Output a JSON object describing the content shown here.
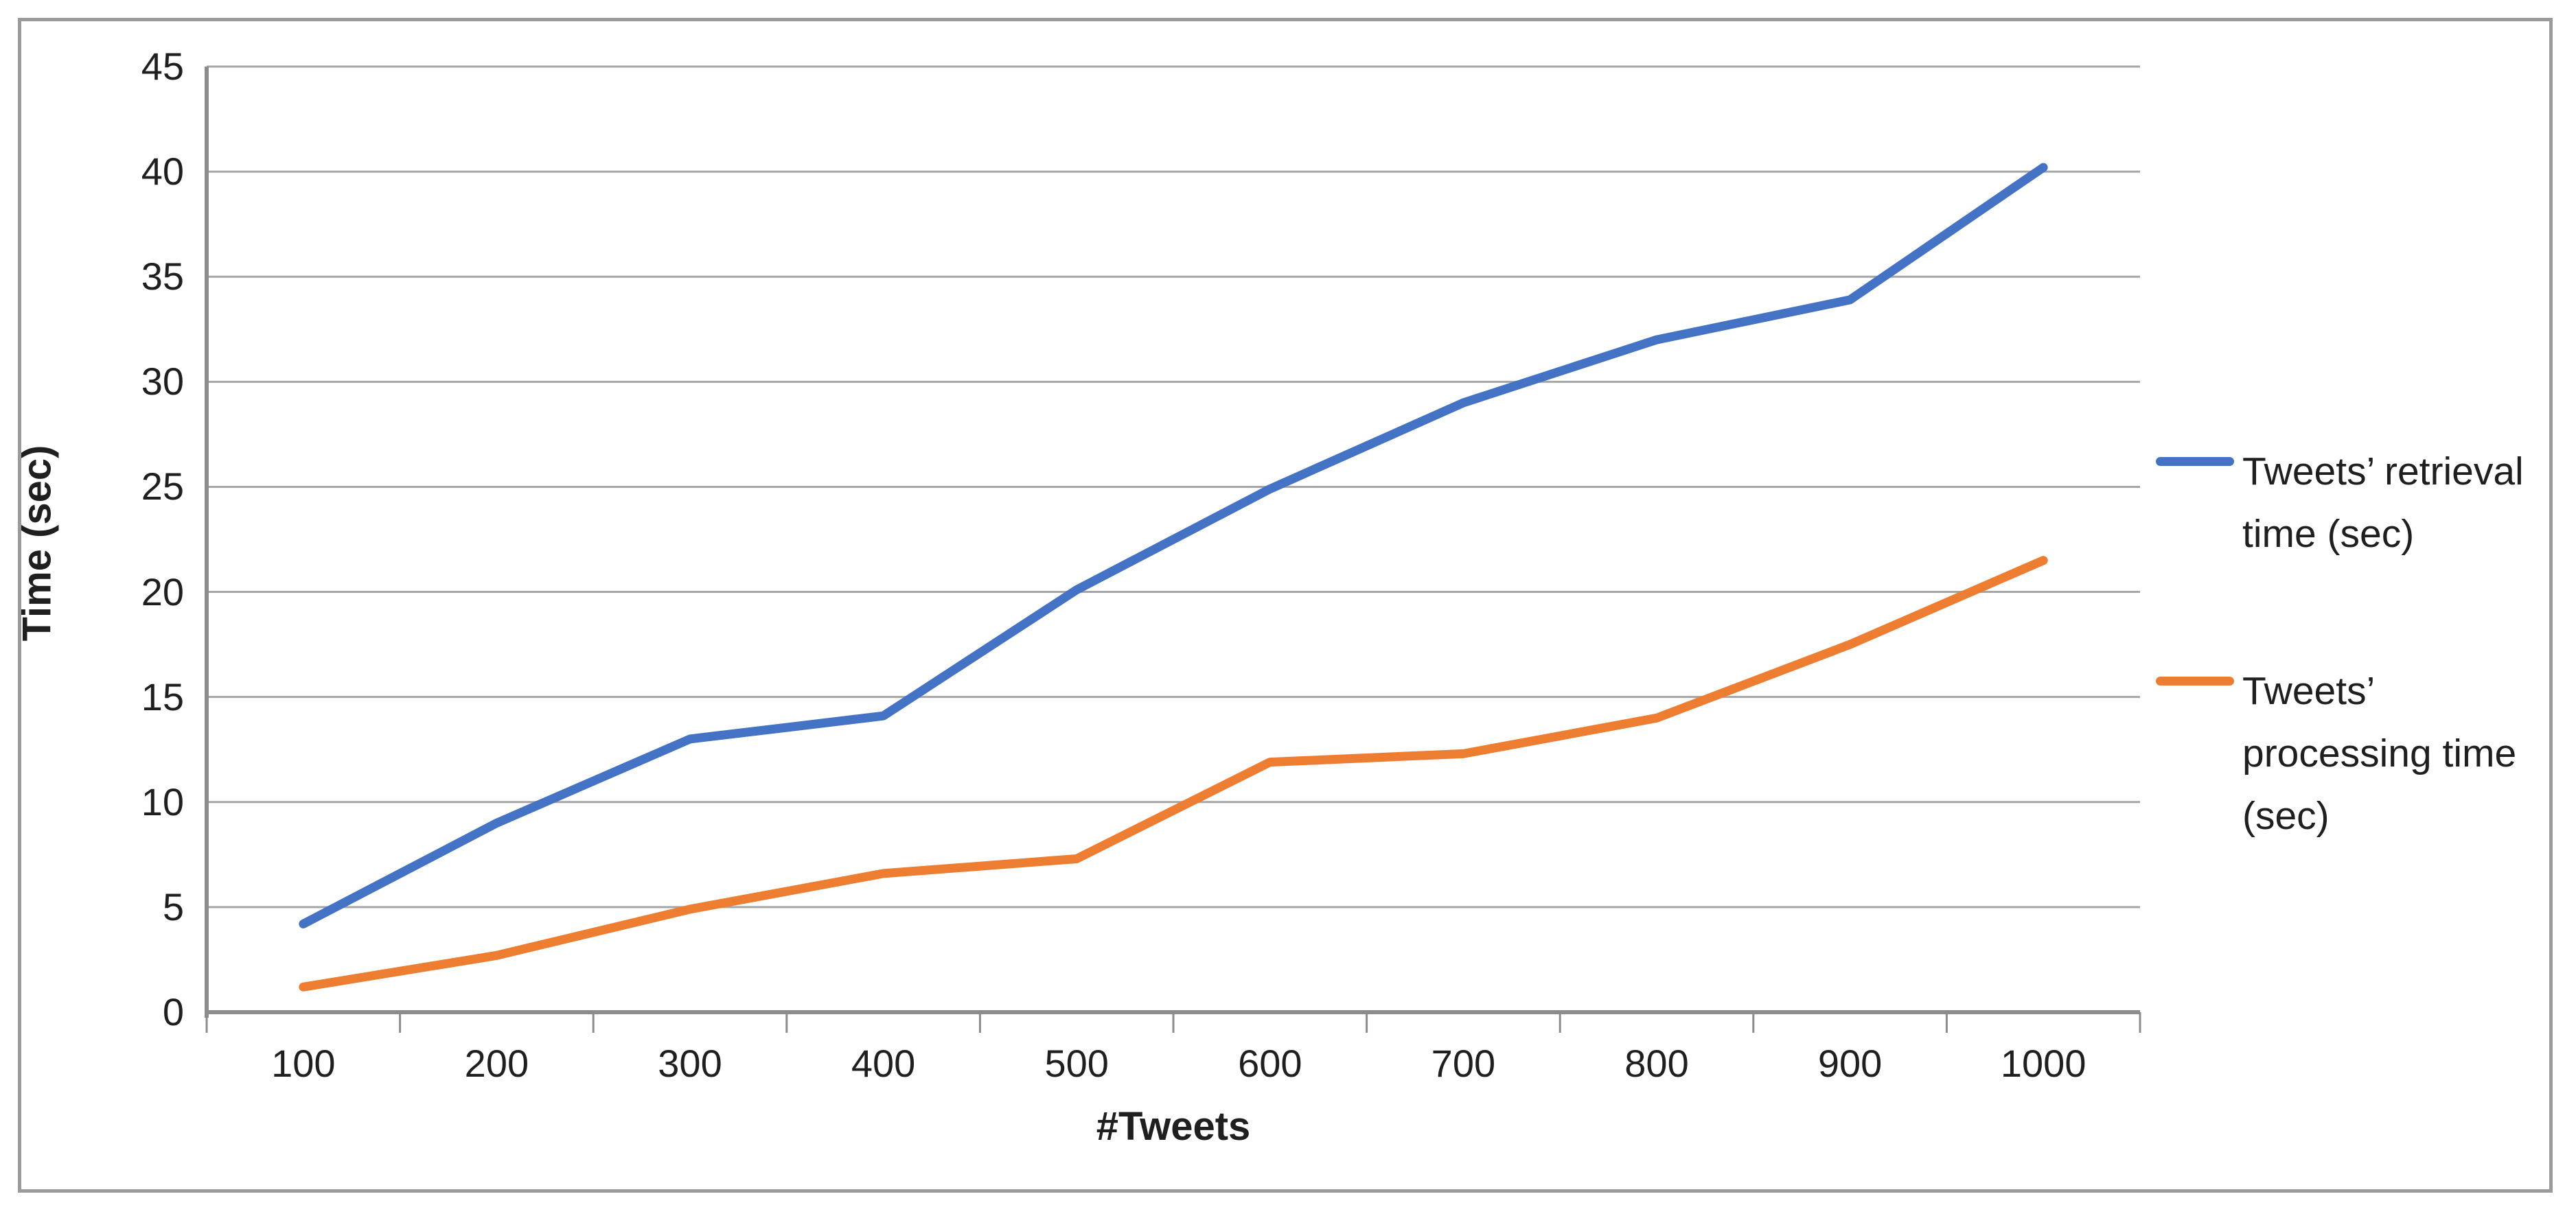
{
  "chart_data": {
    "type": "line",
    "x": [
      100,
      200,
      300,
      400,
      500,
      600,
      700,
      800,
      900,
      1000
    ],
    "categories": [
      "100",
      "200",
      "300",
      "400",
      "500",
      "600",
      "700",
      "800",
      "900",
      "1000"
    ],
    "series": [
      {
        "name": "Tweets’ retrieval time (sec)",
        "color": "#4472C4",
        "values": [
          4.2,
          9.0,
          13.0,
          14.1,
          20.1,
          24.9,
          29.0,
          32.0,
          33.9,
          40.2
        ]
      },
      {
        "name": "Tweets’ processing time (sec)",
        "color": "#ED7D31",
        "values": [
          1.2,
          2.7,
          4.9,
          6.6,
          7.3,
          11.9,
          12.3,
          14.0,
          17.5,
          21.5
        ]
      }
    ],
    "title": "",
    "xlabel": "#Tweets",
    "ylabel": "Time (sec)",
    "ylim": [
      0,
      45
    ],
    "ytick_step": 5,
    "grid": true,
    "legend_position": "right",
    "gridline_color": "#A6A6A6",
    "axis_color": "#8C8C8C",
    "text_color": "#1F1F1F",
    "background_color": "#FFFFFF",
    "frame_border_color": "#9B9B9B"
  },
  "axes": {
    "y_tick_labels": [
      "0",
      "5",
      "10",
      "15",
      "20",
      "25",
      "30",
      "35",
      "40",
      "45"
    ],
    "x_tick_labels": [
      "100",
      "200",
      "300",
      "400",
      "500",
      "600",
      "700",
      "800",
      "900",
      "1000"
    ],
    "x_title": "#Tweets",
    "y_title": "Time (sec)"
  },
  "legend": {
    "items": [
      {
        "name": "retrieval",
        "color": "#4472C4",
        "lines": [
          "Tweets’ retrieval",
          "time (sec)"
        ]
      },
      {
        "name": "processing",
        "color": "#ED7D31",
        "lines": [
          "Tweets’",
          "processing time",
          "(sec)"
        ]
      }
    ]
  }
}
